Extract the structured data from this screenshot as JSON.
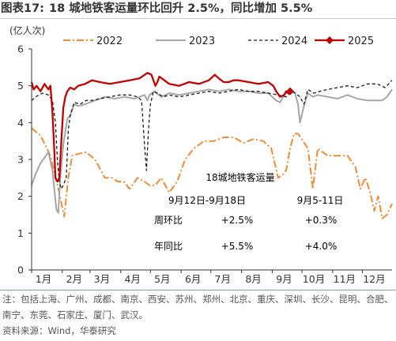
{
  "title": {
    "prefix": "图表17:",
    "text": "18 城地铁客运量环比回升 2.5%，同比增加 5.5%"
  },
  "footer": {
    "notes": "注：包括上海、广州、成都、南京、西安、苏州、郑州、北京、重庆、深圳、长沙、昆明、合肥、南宁、东莞、石家庄、厦门、武汉。",
    "source": "资料来源：Wind，华泰研究"
  },
  "colors": {
    "s2022": "#f08b3a",
    "s2023": "#a6a6a6",
    "s2024": "#1a1a1a",
    "s2025": "#c00000",
    "axis": "#333333"
  },
  "chart_data": {
    "type": "line",
    "ylabel": "(亿人次)",
    "ylim": [
      0,
      6
    ],
    "y_ticks": [
      0,
      1,
      2,
      3,
      4,
      5,
      6
    ],
    "x_ticks": [
      "1月",
      "2月",
      "3月",
      "4月",
      "5月",
      "6月",
      "7月",
      "8月",
      "9月",
      "10月",
      "11月",
      "12月"
    ],
    "x_unit": "day of year (1-365)",
    "legend_position": "top",
    "series": [
      {
        "name": "2022",
        "style": "dash-dot",
        "x": [
          1,
          10,
          20,
          28,
          34,
          38,
          42,
          48,
          56,
          65,
          75,
          82,
          88,
          94,
          100,
          108,
          115,
          120,
          126,
          132,
          140,
          148,
          156,
          165,
          175,
          185,
          195,
          205,
          215,
          225,
          235,
          243,
          250,
          255,
          258,
          262,
          266,
          270,
          275,
          280,
          285,
          290,
          300,
          310,
          320,
          328,
          333,
          338,
          343,
          347,
          351,
          355,
          360,
          365
        ],
        "values": [
          3.85,
          3.65,
          3.1,
          2.2,
          1.45,
          2.5,
          3.1,
          3.15,
          3.2,
          3.0,
          2.5,
          2.5,
          2.4,
          2.4,
          2.2,
          2.5,
          2.4,
          2.3,
          2.3,
          2.5,
          2.1,
          2.4,
          3.0,
          3.3,
          3.5,
          3.5,
          3.6,
          3.6,
          3.45,
          3.55,
          3.5,
          3.3,
          2.5,
          2.6,
          2.7,
          3.3,
          3.7,
          3.7,
          3.5,
          3.3,
          2.2,
          3.3,
          3.1,
          3.1,
          3.1,
          2.8,
          2.2,
          2.5,
          2.1,
          1.6,
          2.0,
          1.4,
          1.5,
          1.8
        ]
      },
      {
        "name": "2023",
        "style": "solid",
        "x": [
          1,
          5,
          10,
          18,
          22,
          26,
          28,
          30,
          33,
          37,
          40,
          44,
          48,
          55,
          65,
          75,
          85,
          95,
          105,
          115,
          118,
          120,
          125,
          132,
          140,
          150,
          160,
          170,
          180,
          190,
          200,
          210,
          220,
          230,
          240,
          248,
          252,
          255,
          258,
          262,
          267,
          270,
          272,
          276,
          280,
          285,
          290,
          300,
          310,
          320,
          330,
          340,
          350,
          355,
          360,
          365
        ],
        "values": [
          2.3,
          2.6,
          2.9,
          3.2,
          2.7,
          1.65,
          1.55,
          2.5,
          3.4,
          4.1,
          4.2,
          4.5,
          4.45,
          4.5,
          4.6,
          4.7,
          4.65,
          4.7,
          4.65,
          4.75,
          4.6,
          4.75,
          4.85,
          4.7,
          4.8,
          4.75,
          4.8,
          4.85,
          4.9,
          4.85,
          4.9,
          4.85,
          4.85,
          4.8,
          4.8,
          4.6,
          4.55,
          4.7,
          4.8,
          4.85,
          4.8,
          4.5,
          4.0,
          4.45,
          4.8,
          4.7,
          4.75,
          4.7,
          4.65,
          4.75,
          4.65,
          4.6,
          4.6,
          4.6,
          4.7,
          4.9
        ]
      },
      {
        "name": "2024",
        "style": "dash",
        "x": [
          1,
          5,
          12,
          18,
          22,
          25,
          27,
          29,
          31,
          33,
          36,
          38,
          40,
          44,
          50,
          56,
          62,
          70,
          80,
          90,
          100,
          108,
          112,
          115,
          117,
          119,
          121,
          124,
          128,
          134,
          140,
          150,
          160,
          170,
          180,
          190,
          200,
          210,
          220,
          230,
          240,
          250,
          258,
          265,
          272,
          276,
          280,
          286,
          292,
          300,
          310,
          320,
          330,
          340,
          350,
          358,
          365
        ],
        "values": [
          4.6,
          4.7,
          4.8,
          4.75,
          4.6,
          4.0,
          3.0,
          2.4,
          2.2,
          2.3,
          2.5,
          3.8,
          4.2,
          4.55,
          4.5,
          4.6,
          4.6,
          4.65,
          4.7,
          4.75,
          4.75,
          4.7,
          4.6,
          3.4,
          2.7,
          3.8,
          4.5,
          4.85,
          4.8,
          4.7,
          4.75,
          4.7,
          4.75,
          4.8,
          4.85,
          4.8,
          4.85,
          4.9,
          4.85,
          4.85,
          4.8,
          4.75,
          4.7,
          4.85,
          4.7,
          4.5,
          4.9,
          4.8,
          4.85,
          4.9,
          4.95,
          5.0,
          4.95,
          5.05,
          5.05,
          4.95,
          5.15
        ]
      },
      {
        "name": "2025",
        "style": "solid-thick",
        "x": [
          1,
          3,
          6,
          10,
          14,
          18,
          20,
          22,
          24,
          25,
          27,
          29,
          31,
          33,
          35,
          37,
          40,
          44,
          48,
          55,
          62,
          70,
          80,
          90,
          100,
          110,
          118,
          122,
          126,
          128,
          130,
          135,
          140,
          150,
          160,
          170,
          180,
          186,
          190,
          195,
          200,
          205,
          210,
          220,
          230,
          240,
          245,
          248,
          252,
          256,
          258,
          260,
          262
        ],
        "values": [
          5.1,
          4.9,
          5.0,
          4.85,
          5.05,
          4.9,
          5.0,
          4.3,
          3.2,
          2.5,
          2.4,
          2.5,
          3.5,
          4.4,
          4.7,
          4.85,
          4.95,
          4.9,
          5.0,
          5.05,
          5.15,
          5.1,
          5.05,
          5.1,
          5.15,
          5.2,
          5.35,
          5.3,
          5.0,
          5.1,
          5.25,
          5.15,
          5.05,
          5.0,
          5.1,
          5.05,
          5.15,
          5.3,
          5.2,
          5.1,
          5.1,
          5.15,
          5.15,
          5.1,
          5.05,
          5.1,
          5.0,
          4.85,
          4.7,
          4.75,
          4.85,
          4.8,
          4.85
        ]
      }
    ]
  },
  "table": {
    "title": "18城地铁客运量",
    "col1": "9月12日-9月18日",
    "col2": "9月5-11日",
    "rows": [
      {
        "label": "周环比",
        "v1": "+2.5%",
        "v2": "+0.3%"
      },
      {
        "label": "年同比",
        "v1": "+5.5%",
        "v2": "+4.0%"
      }
    ]
  }
}
